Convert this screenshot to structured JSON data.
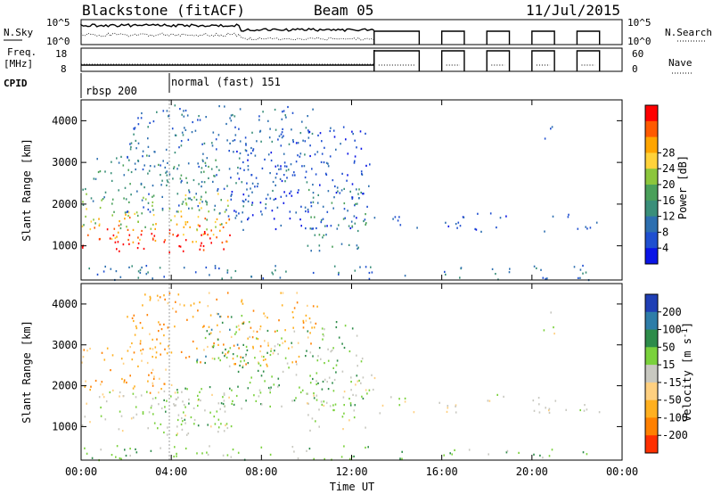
{
  "header": {
    "site": "Blackstone (fitACF)",
    "beam": "Beam 05",
    "date": "11/Jul/2015"
  },
  "status_panels": {
    "nsky_label": "N.Sky",
    "nsky_ticks": [
      "10^5",
      "10^0"
    ],
    "nsearch_label": "N.Search",
    "nsearch_ticks": [
      "10^5",
      "10^0"
    ],
    "freq_label_line1": "Freq.",
    "freq_label_line2": "[MHz]",
    "freq_ticks": [
      "18",
      "8"
    ],
    "nave_label": "Nave",
    "nave_ticks": [
      "60",
      "0"
    ],
    "cpid_label": "CPID",
    "cpid_segments": [
      {
        "start_hour": 0,
        "label": "rbsp 200"
      },
      {
        "start_hour": 4,
        "label": "normal (fast) 151"
      }
    ]
  },
  "chart_data": [
    {
      "type": "heatmap",
      "name": "power-panel",
      "ylabel": "Slant Range [km]",
      "x_ticks": [
        "00:00",
        "04:00",
        "08:00",
        "12:00",
        "16:00",
        "20:00",
        "00:00"
      ],
      "x_range_hours": [
        0,
        24
      ],
      "y_ticks": [
        1000,
        2000,
        3000,
        4000
      ],
      "y_range_km": [
        180,
        4500
      ],
      "colorbar": {
        "label": "Power [dB]",
        "ticks": [
          "4",
          "8",
          "12",
          "16",
          "20",
          "24",
          "28"
        ],
        "colors": [
          "#0a14e6",
          "#1f4fd0",
          "#2d6fb0",
          "#3a8f7a",
          "#4aa05a",
          "#8cc63c",
          "#ffd23a",
          "#ffa500",
          "#ff5a00",
          "#ff0000"
        ]
      },
      "scatter_regions": [
        {
          "h0": 0.0,
          "h1": 6.6,
          "r0": 800,
          "r1": 1500,
          "color_index": 9
        },
        {
          "h0": 0.0,
          "h1": 6.6,
          "r0": 1100,
          "r1": 1800,
          "color_index": 7
        },
        {
          "h0": 0.0,
          "h1": 6.6,
          "r0": 1400,
          "r1": 2300,
          "color_index": 5
        },
        {
          "h0": 0.0,
          "h1": 6.0,
          "r0": 2000,
          "r1": 3200,
          "color_index": 3
        },
        {
          "h0": 2.0,
          "h1": 10.5,
          "r0": 1800,
          "r1": 4400,
          "color_index": 2
        },
        {
          "h0": 6.5,
          "h1": 12.8,
          "r0": 1400,
          "r1": 3900,
          "color_index": 1
        },
        {
          "h0": 10.0,
          "h1": 13.0,
          "r0": 900,
          "r1": 2400,
          "color_index": 3
        },
        {
          "h0": 0.0,
          "h1": 23.0,
          "r0": 200,
          "r1": 550,
          "color_index": 2
        },
        {
          "h0": 13.0,
          "h1": 23.0,
          "r0": 1350,
          "r1": 1800,
          "color_index": 1
        },
        {
          "h0": 20.5,
          "h1": 21.0,
          "r0": 3300,
          "r1": 3900,
          "color_index": 1
        }
      ]
    },
    {
      "type": "heatmap",
      "name": "velocity-panel",
      "ylabel": "Slant Range [km]",
      "xlabel": "Time UT",
      "x_ticks": [
        "00:00",
        "04:00",
        "08:00",
        "12:00",
        "16:00",
        "20:00",
        "00:00"
      ],
      "x_range_hours": [
        0,
        24
      ],
      "y_ticks": [
        1000,
        2000,
        3000,
        4000
      ],
      "y_range_km": [
        180,
        4500
      ],
      "colorbar": {
        "label": "Velocity [m s-1]",
        "label_main": "Velocity [m s",
        "label_sup": "-1",
        "label_end": "]",
        "ticks": [
          "200",
          "100",
          "50",
          "15",
          "-15",
          "-50",
          "-100",
          "-200"
        ],
        "colors": [
          "#1f3fb5",
          "#2e7da8",
          "#2e8c4a",
          "#7ad13c",
          "#c8c8c0",
          "#ffd080",
          "#ffb020",
          "#ff8000",
          "#ff3000"
        ]
      },
      "scatter_regions": [
        {
          "h0": 0.0,
          "h1": 6.6,
          "r0": 800,
          "r1": 1900,
          "color_index": 4
        },
        {
          "h0": 3.0,
          "h1": 7.2,
          "r0": 1000,
          "r1": 2000,
          "color_index": 3
        },
        {
          "h0": 0.0,
          "h1": 4.0,
          "r0": 1800,
          "r1": 3000,
          "color_index": 6
        },
        {
          "h0": 2.0,
          "h1": 10.5,
          "r0": 2500,
          "r1": 4300,
          "color_index": 6
        },
        {
          "h0": 5.0,
          "h1": 7.5,
          "r0": 2500,
          "r1": 3800,
          "color_index": 2
        },
        {
          "h0": 6.5,
          "h1": 12.5,
          "r0": 1500,
          "r1": 3600,
          "color_index": 3
        },
        {
          "h0": 10.0,
          "h1": 13.0,
          "r0": 900,
          "r1": 2300,
          "color_index": 4
        },
        {
          "h0": 0.0,
          "h1": 23.0,
          "r0": 200,
          "r1": 550,
          "color_index": 3
        },
        {
          "h0": 13.0,
          "h1": 23.0,
          "r0": 1350,
          "r1": 1800,
          "color_index": 4
        },
        {
          "h0": 20.5,
          "h1": 21.0,
          "r0": 3200,
          "r1": 3900,
          "color_index": 4
        }
      ]
    }
  ]
}
